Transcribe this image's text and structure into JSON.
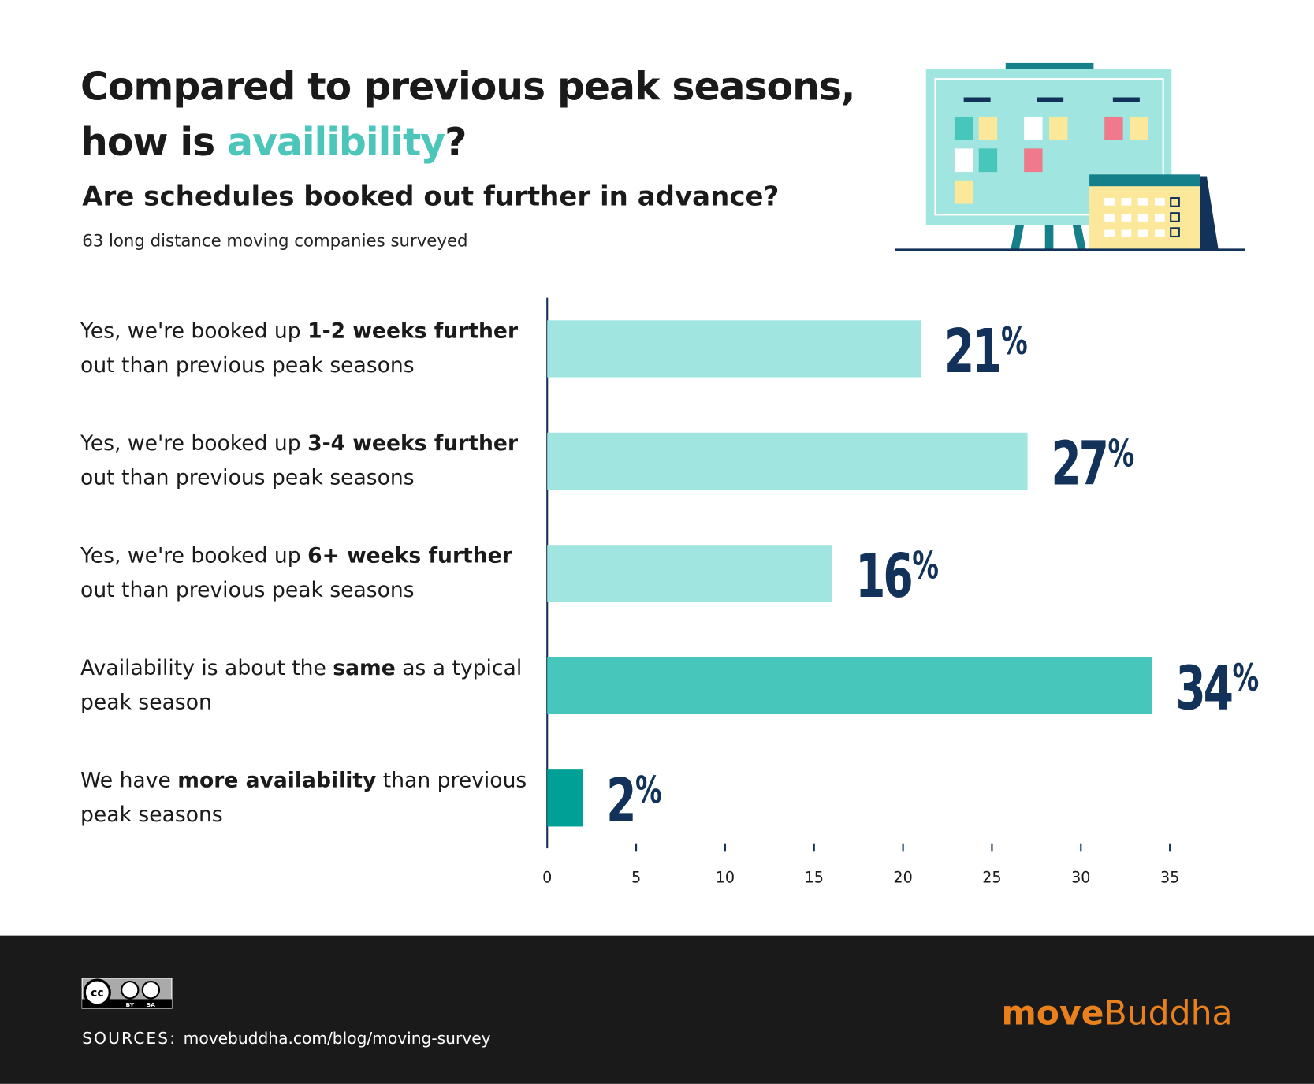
{
  "title": [
    "Compared to previous peak seasons, how is ",
    {
      "highlight": "availibility"
    },
    "?"
  ],
  "subtitle": "Are schedules booked out further in advance?",
  "note": "63 long distance moving companies surveyed",
  "chart_data": {
    "type": "bar",
    "orientation": "horizontal",
    "categories": [
      [
        "Yes, we're booked up ",
        {
          "bold": "1-2 weeks further"
        },
        " out than previous peak seasons"
      ],
      [
        "Yes, we're booked up ",
        {
          "bold": "3-4 weeks further"
        },
        " out than previous peak seasons"
      ],
      [
        "Yes, we're booked up ",
        {
          "bold": "6+ weeks further"
        },
        " out than previous peak seasons"
      ],
      [
        "Availability is about the ",
        {
          "bold": "same"
        },
        " as a typical peak season"
      ],
      [
        "We have ",
        {
          "bold": "more availability"
        },
        " than previous peak seasons"
      ]
    ],
    "values": [
      21,
      27,
      16,
      34,
      2
    ],
    "value_labels": [
      "21%",
      "27%",
      "16%",
      "34%",
      "2%"
    ],
    "colors": [
      "#a0e5df",
      "#a0e5df",
      "#a0e5df",
      "#47c6bb",
      "#00a096"
    ],
    "label_color": "#12325a",
    "xlim": [
      0,
      35
    ],
    "xticks": [
      0,
      5,
      10,
      15,
      20,
      25,
      30,
      35
    ]
  },
  "license_badge": [
    "cc",
    "BY",
    "SA"
  ],
  "source_label": "SOURCES:",
  "source": "movebuddha.com/blog/moving-survey",
  "brand": [
    {
      "bold": "move"
    },
    "Buddha"
  ]
}
